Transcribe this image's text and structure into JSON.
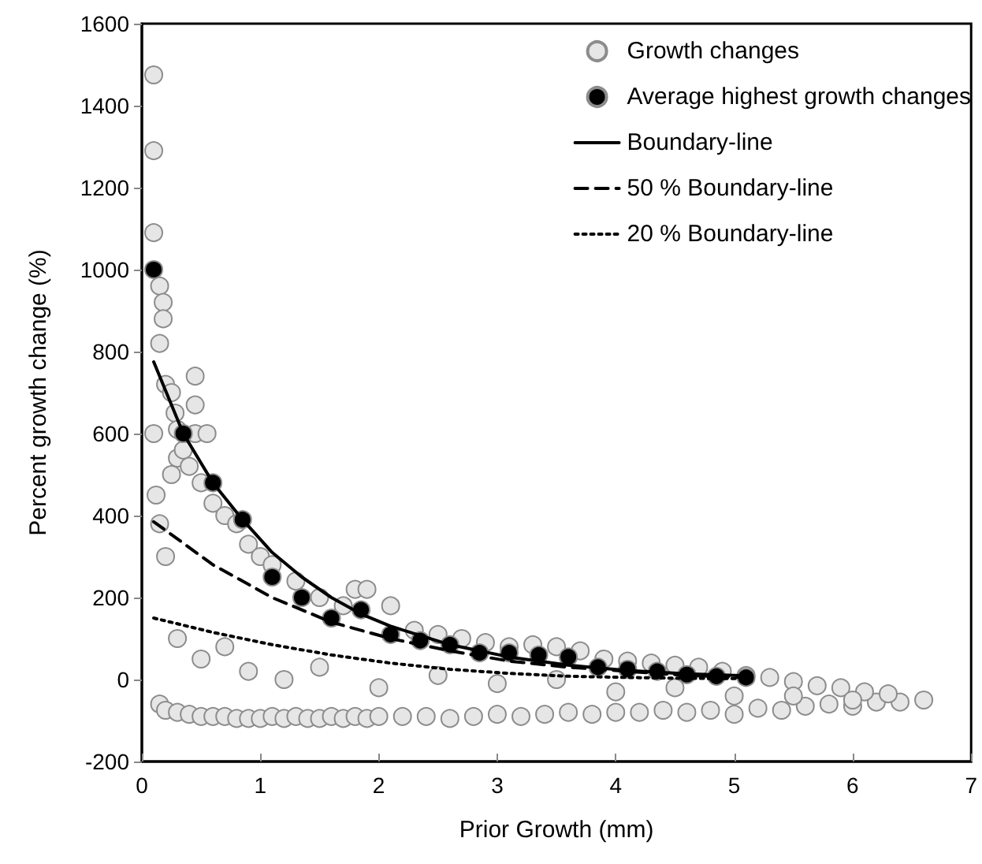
{
  "chart_data": {
    "type": "scatter",
    "xlabel": "Prior Growth (mm)",
    "ylabel": "Percent growth change (%)",
    "xlim": [
      0,
      7
    ],
    "xticks": [
      0,
      1,
      2,
      3,
      4,
      5,
      6,
      7
    ],
    "ylim": [
      -200,
      1600
    ],
    "yticks": [
      -200,
      0,
      200,
      400,
      600,
      800,
      1000,
      1200,
      1400,
      1600
    ],
    "grid": false,
    "legend": "top right",
    "series": [
      {
        "name": "Growth changes",
        "color": "#e6e6e6",
        "marker": "circle",
        "x": [
          0.1,
          0.1,
          0.1,
          0.15,
          0.18,
          0.18,
          0.15,
          0.2,
          0.25,
          0.28,
          0.3,
          0.45,
          0.45,
          0.45,
          0.55,
          0.1,
          0.12,
          0.15,
          0.2,
          0.25,
          0.3,
          0.35,
          0.4,
          0.5,
          0.6,
          0.7,
          0.8,
          0.9,
          1.0,
          0.15,
          0.2,
          0.3,
          0.4,
          0.5,
          0.6,
          0.7,
          0.8,
          0.9,
          1.0,
          1.1,
          1.2,
          1.3,
          1.4,
          1.5,
          1.6,
          1.7,
          1.8,
          1.9,
          2.0,
          2.2,
          2.4,
          2.6,
          2.8,
          3.0,
          3.2,
          3.4,
          3.6,
          3.8,
          4.0,
          4.2,
          4.4,
          4.6,
          4.8,
          5.0,
          5.2,
          5.4,
          5.6,
          5.8,
          6.0,
          6.2,
          6.4,
          6.6,
          1.1,
          1.3,
          1.5,
          1.7,
          1.8,
          1.9,
          2.1,
          2.3,
          2.5,
          2.7,
          2.9,
          3.1,
          3.3,
          3.5,
          3.7,
          3.9,
          4.1,
          4.3,
          4.5,
          4.7,
          4.9,
          5.1,
          5.3,
          5.5,
          5.7,
          5.9,
          6.1,
          6.3,
          0.3,
          0.5,
          0.7,
          0.9,
          1.2,
          1.5,
          2.0,
          2.5,
          3.0,
          3.5,
          4.0,
          4.5,
          5.0,
          5.5,
          6.0
        ],
        "values": [
          1475,
          1290,
          1090,
          960,
          920,
          880,
          820,
          720,
          700,
          650,
          610,
          740,
          670,
          600,
          600,
          600,
          450,
          380,
          300,
          500,
          540,
          560,
          520,
          480,
          430,
          400,
          380,
          330,
          300,
          -60,
          -75,
          -80,
          -85,
          -90,
          -90,
          -90,
          -95,
          -95,
          -95,
          -90,
          -95,
          -90,
          -95,
          -95,
          -90,
          -95,
          -90,
          -95,
          -90,
          -90,
          -90,
          -95,
          -90,
          -85,
          -90,
          -85,
          -80,
          -85,
          -80,
          -80,
          -75,
          -80,
          -75,
          -85,
          -70,
          -75,
          -65,
          -60,
          -65,
          -55,
          -55,
          -50,
          280,
          240,
          200,
          180,
          220,
          220,
          180,
          120,
          110,
          100,
          90,
          80,
          85,
          80,
          70,
          50,
          45,
          40,
          35,
          30,
          20,
          10,
          5,
          -5,
          -15,
          -20,
          -30,
          -35,
          100,
          50,
          80,
          20,
          0,
          30,
          -20,
          10,
          -10,
          0,
          -30,
          -20,
          -40,
          -40,
          -50
        ]
      },
      {
        "name": "Average highest growth changes",
        "color": "#000000",
        "marker": "circle",
        "x": [
          0.1,
          0.35,
          0.6,
          0.85,
          1.1,
          1.35,
          1.6,
          1.85,
          2.1,
          2.35,
          2.6,
          2.85,
          3.1,
          3.35,
          3.6,
          3.85,
          4.1,
          4.35,
          4.6,
          4.85,
          5.1
        ],
        "values": [
          1000,
          600,
          480,
          390,
          250,
          200,
          150,
          170,
          110,
          95,
          85,
          65,
          65,
          60,
          55,
          30,
          25,
          20,
          12,
          8,
          5
        ]
      },
      {
        "type": "line",
        "name": "Boundary-line",
        "color": "#000000",
        "marker": "none",
        "line_style": "solid",
        "x": [
          0.1,
          0.35,
          0.6,
          0.85,
          1.1,
          1.35,
          1.6,
          1.85,
          2.1,
          2.6,
          3.1,
          3.6,
          4.1,
          4.6,
          5.1
        ],
        "values": [
          775,
          600,
          480,
          390,
          310,
          250,
          200,
          160,
          130,
          85,
          55,
          35,
          22,
          14,
          9
        ]
      },
      {
        "type": "line",
        "name": "50 % Boundary-line",
        "color": "#000000",
        "marker": "none",
        "line_style": "dashed",
        "x": [
          0.1,
          0.6,
          1.1,
          1.6,
          2.1,
          2.6,
          3.1,
          3.6,
          4.1,
          4.6,
          5.1
        ],
        "values": [
          385,
          280,
          200,
          140,
          100,
          70,
          45,
          30,
          20,
          10,
          5
        ]
      },
      {
        "type": "line",
        "name": "20 % Boundary-line",
        "color": "#000000",
        "marker": "none",
        "line_style": "dotted",
        "x": [
          0.1,
          0.6,
          1.1,
          1.6,
          2.1,
          2.6,
          3.1,
          3.6,
          4.1,
          4.6,
          5.1
        ],
        "values": [
          150,
          115,
          85,
          60,
          40,
          25,
          15,
          8,
          5,
          3,
          2
        ]
      }
    ]
  }
}
